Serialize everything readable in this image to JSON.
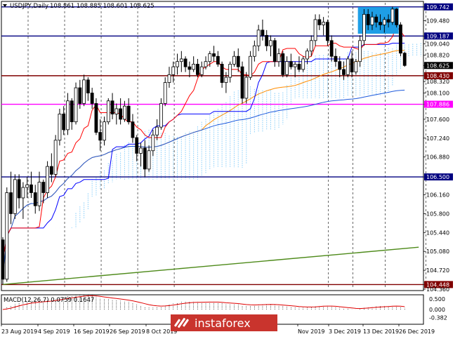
{
  "header": {
    "symbol": "USDJPY,Daily",
    "quote": "108.861 108.885 108.601 108.625"
  },
  "macd_label": "MACD(12,26,7) 0.0759 0.1647",
  "watermark": "instaforex",
  "colors": {
    "bull": "#000000",
    "bear": "#000000",
    "price_line_hi": "#000080",
    "level_brown": "#800000",
    "level_pink": "#ff00ff",
    "trend_green": "#4e8a1a",
    "kijun": "#0000ff",
    "tenkan": "#ff0000",
    "cloud_bull": "#87cefa",
    "cloud_bear": "#c05050",
    "ma_orange": "#ff8c00",
    "ma_blue": "#1e5adc",
    "box_cyan": "#1e9ee6",
    "current_price_bg": "#000000"
  },
  "chart_data": {
    "type": "candlestick",
    "title": "USDJPY,Daily",
    "y_ticks": [
      109.742,
      109.48,
      109.187,
      109.04,
      108.82,
      108.625,
      108.43,
      108.32,
      108.1,
      107.886,
      107.6,
      107.24,
      106.88,
      106.5,
      106.16,
      105.8,
      105.44,
      105.08,
      104.72,
      104.448,
      104.36
    ],
    "x_labels": [
      "23 Aug 2019",
      "4 Sep 2019",
      "16 Sep 2019",
      "26 Sep 2019",
      "8 Oct 2019",
      "Nov 2019",
      "3 Dec 2019",
      "13 Dec 2019",
      "26 Dec 2019"
    ],
    "ylim": [
      104.36,
      109.82
    ],
    "horizontal_levels": [
      {
        "value": 109.742,
        "color": "#000080",
        "label": "109.742"
      },
      {
        "value": 109.187,
        "color": "#000080",
        "label": "109.187"
      },
      {
        "value": 108.43,
        "color": "#800000",
        "label": "108.430"
      },
      {
        "value": 107.886,
        "color": "#ff00ff",
        "label": "107.886"
      },
      {
        "value": 106.5,
        "color": "#000080",
        "label": "106.500"
      },
      {
        "value": 104.448,
        "color": "#800000",
        "label": "104.448"
      }
    ],
    "current_price": 108.625,
    "trendline": {
      "from": [
        0,
        104.45
      ],
      "to": [
        99,
        105.14
      ]
    },
    "candles": [
      [
        105.3,
        105.35,
        104.45,
        104.55
      ],
      [
        104.55,
        106.3,
        104.5,
        106.2
      ],
      [
        106.2,
        106.6,
        105.6,
        105.8
      ],
      [
        105.8,
        106.55,
        105.7,
        106.45
      ],
      [
        106.45,
        106.55,
        105.9,
        106.1
      ],
      [
        106.1,
        106.4,
        105.7,
        106.3
      ],
      [
        106.3,
        106.5,
        106.1,
        106.35
      ],
      [
        106.35,
        106.6,
        106.1,
        106.2
      ],
      [
        106.2,
        106.35,
        105.8,
        105.95
      ],
      [
        105.95,
        106.6,
        105.85,
        106.4
      ],
      [
        106.4,
        106.45,
        106.0,
        106.2
      ],
      [
        106.2,
        106.8,
        106.1,
        106.7
      ],
      [
        106.7,
        106.95,
        106.4,
        106.55
      ],
      [
        106.55,
        107.3,
        106.5,
        107.2
      ],
      [
        107.2,
        107.8,
        107.1,
        107.7
      ],
      [
        107.7,
        107.85,
        107.3,
        107.4
      ],
      [
        107.4,
        108.1,
        107.3,
        107.95
      ],
      [
        107.95,
        108.0,
        107.4,
        107.55
      ],
      [
        107.55,
        108.3,
        107.5,
        108.2
      ],
      [
        108.2,
        108.35,
        107.8,
        107.9
      ],
      [
        107.9,
        108.45,
        107.85,
        108.35
      ],
      [
        108.35,
        108.4,
        107.95,
        108.1
      ],
      [
        108.1,
        108.2,
        107.8,
        107.9
      ],
      [
        107.9,
        108.0,
        107.3,
        107.35
      ],
      [
        107.35,
        107.6,
        107.0,
        107.2
      ],
      [
        107.2,
        107.65,
        107.1,
        107.55
      ],
      [
        107.55,
        108.0,
        107.5,
        107.95
      ],
      [
        107.95,
        108.1,
        107.6,
        107.7
      ],
      [
        107.7,
        107.9,
        107.5,
        107.8
      ],
      [
        107.8,
        108.0,
        107.5,
        107.6
      ],
      [
        107.6,
        107.95,
        107.55,
        107.85
      ],
      [
        107.85,
        108.0,
        107.5,
        107.55
      ],
      [
        107.55,
        107.7,
        107.15,
        107.25
      ],
      [
        107.25,
        107.3,
        106.8,
        106.95
      ],
      [
        106.95,
        107.15,
        106.7,
        107.05
      ],
      [
        107.05,
        107.2,
        106.5,
        106.65
      ],
      [
        106.65,
        107.1,
        106.6,
        107.0
      ],
      [
        107.0,
        107.4,
        106.9,
        107.3
      ],
      [
        107.3,
        107.6,
        107.2,
        107.45
      ],
      [
        107.45,
        108.0,
        107.4,
        107.9
      ],
      [
        107.9,
        108.4,
        107.85,
        108.3
      ],
      [
        108.3,
        108.6,
        108.2,
        108.45
      ],
      [
        108.45,
        108.7,
        108.3,
        108.6
      ],
      [
        108.6,
        108.85,
        108.45,
        108.7
      ],
      [
        108.7,
        108.9,
        108.5,
        108.75
      ],
      [
        108.75,
        108.8,
        108.5,
        108.6
      ],
      [
        108.6,
        108.7,
        108.4,
        108.55
      ],
      [
        108.55,
        108.8,
        108.5,
        108.65
      ],
      [
        108.65,
        108.75,
        108.4,
        108.45
      ],
      [
        108.45,
        108.7,
        108.4,
        108.6
      ],
      [
        108.6,
        108.8,
        108.55,
        108.7
      ],
      [
        108.7,
        108.9,
        108.6,
        108.85
      ],
      [
        108.85,
        109.0,
        108.7,
        108.8
      ],
      [
        108.8,
        108.9,
        108.6,
        108.65
      ],
      [
        108.65,
        108.7,
        108.2,
        108.3
      ],
      [
        108.3,
        108.5,
        108.1,
        108.4
      ],
      [
        108.4,
        108.7,
        108.3,
        108.65
      ],
      [
        108.65,
        108.9,
        108.6,
        108.8
      ],
      [
        108.8,
        108.95,
        108.5,
        108.6
      ],
      [
        108.6,
        108.7,
        107.9,
        108.0
      ],
      [
        108.0,
        108.5,
        107.9,
        108.4
      ],
      [
        108.4,
        108.9,
        108.35,
        108.8
      ],
      [
        108.8,
        109.1,
        108.7,
        109.0
      ],
      [
        109.0,
        109.4,
        108.9,
        109.3
      ],
      [
        109.3,
        109.5,
        109.1,
        109.2
      ],
      [
        109.2,
        109.3,
        108.9,
        109.0
      ],
      [
        109.0,
        109.2,
        108.8,
        109.1
      ],
      [
        109.1,
        109.15,
        108.6,
        108.7
      ],
      [
        108.7,
        108.95,
        108.6,
        108.85
      ],
      [
        108.85,
        108.9,
        108.4,
        108.45
      ],
      [
        108.45,
        108.8,
        108.4,
        108.7
      ],
      [
        108.7,
        108.85,
        108.55,
        108.6
      ],
      [
        108.6,
        108.7,
        108.4,
        108.65
      ],
      [
        108.65,
        108.8,
        108.5,
        108.55
      ],
      [
        108.55,
        108.8,
        108.5,
        108.75
      ],
      [
        108.75,
        108.95,
        108.65,
        108.9
      ],
      [
        108.9,
        109.2,
        108.8,
        109.1
      ],
      [
        109.1,
        109.6,
        109.0,
        109.5
      ],
      [
        109.5,
        109.6,
        109.3,
        109.4
      ],
      [
        109.4,
        109.55,
        109.2,
        109.45
      ],
      [
        109.45,
        109.5,
        109.0,
        109.1
      ],
      [
        109.1,
        109.2,
        108.7,
        108.8
      ],
      [
        108.8,
        108.95,
        108.6,
        108.7
      ],
      [
        108.7,
        108.8,
        108.4,
        108.55
      ],
      [
        108.55,
        108.7,
        108.35,
        108.45
      ],
      [
        108.45,
        108.8,
        108.4,
        108.75
      ],
      [
        108.75,
        108.9,
        108.4,
        108.5
      ],
      [
        108.5,
        108.75,
        108.45,
        108.7
      ],
      [
        108.7,
        109.2,
        108.6,
        109.1
      ],
      [
        109.1,
        109.7,
        109.0,
        109.6
      ],
      [
        109.6,
        109.7,
        109.3,
        109.4
      ],
      [
        109.4,
        109.65,
        109.3,
        109.55
      ],
      [
        109.55,
        109.6,
        109.35,
        109.45
      ],
      [
        109.45,
        109.6,
        109.3,
        109.4
      ],
      [
        109.4,
        109.55,
        109.25,
        109.5
      ],
      [
        109.5,
        109.6,
        109.35,
        109.45
      ],
      [
        109.45,
        109.75,
        109.4,
        109.7
      ],
      [
        109.7,
        109.72,
        109.35,
        109.4
      ],
      [
        109.4,
        109.45,
        108.8,
        108.86
      ],
      [
        108.86,
        108.885,
        108.6,
        108.625
      ]
    ]
  }
}
